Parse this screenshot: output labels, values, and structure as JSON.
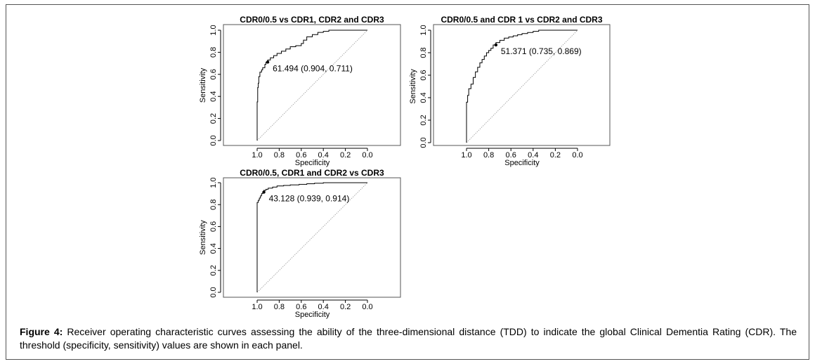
{
  "figure": {
    "caption_label": "Figure 4:",
    "caption_text": " Receiver operating characteristic curves assessing the ability of the three-dimensional distance (TDD) to indicate the global Clinical Dementia Rating (CDR). The threshold (specificity, sensitivity) values are shown in each panel."
  },
  "chart_data": [
    {
      "type": "line",
      "title": "CDR0/0.5 vs CDR1, CDR2 and CDR3",
      "xlabel": "Specificity",
      "ylabel": "Sensitivity",
      "xlim": [
        1.0,
        0.0
      ],
      "ylim": [
        0.0,
        1.0
      ],
      "x_reversed": true,
      "xticks": [
        "1.0",
        "0.8",
        "0.6",
        "0.4",
        "0.2",
        "0.0"
      ],
      "yticks": [
        "0.0",
        "0.2",
        "0.4",
        "0.6",
        "0.8",
        "1.0"
      ],
      "threshold": {
        "label": "61.494 (0.904, 0.711)",
        "specificity": 0.904,
        "sensitivity": 0.711
      },
      "series": [
        {
          "specificity": [
            1.0,
            1.0,
            0.995,
            0.99,
            0.985,
            0.975,
            0.96,
            0.95,
            0.93,
            0.92,
            0.904,
            0.88,
            0.85,
            0.82,
            0.78,
            0.74,
            0.7,
            0.65,
            0.6,
            0.58,
            0.55,
            0.5,
            0.45,
            0.4,
            0.35,
            0.3,
            0.2,
            0.1,
            0.0
          ],
          "sensitivity": [
            0.0,
            0.18,
            0.35,
            0.48,
            0.52,
            0.58,
            0.62,
            0.64,
            0.66,
            0.69,
            0.711,
            0.73,
            0.75,
            0.77,
            0.79,
            0.81,
            0.83,
            0.85,
            0.86,
            0.88,
            0.91,
            0.94,
            0.96,
            0.98,
            0.99,
            1.0,
            1.0,
            1.0,
            1.0
          ]
        }
      ]
    },
    {
      "type": "line",
      "title": "CDR0/0.5 and CDR 1 vs CDR2 and CDR3",
      "xlabel": "Specificity",
      "ylabel": "Sensitivity",
      "xlim": [
        1.0,
        0.0
      ],
      "ylim": [
        0.0,
        1.0
      ],
      "x_reversed": true,
      "xticks": [
        "1.0",
        "0.8",
        "0.6",
        "0.4",
        "0.2",
        "0.0"
      ],
      "yticks": [
        "0.0",
        "0.2",
        "0.4",
        "0.6",
        "0.8",
        "1.0"
      ],
      "threshold": {
        "label": "51.371 (0.735, 0.869)",
        "specificity": 0.735,
        "sensitivity": 0.869
      },
      "series": [
        {
          "specificity": [
            1.0,
            1.0,
            0.99,
            0.98,
            0.96,
            0.94,
            0.92,
            0.9,
            0.88,
            0.86,
            0.84,
            0.82,
            0.8,
            0.78,
            0.76,
            0.735,
            0.7,
            0.66,
            0.62,
            0.58,
            0.54,
            0.5,
            0.45,
            0.4,
            0.35,
            0.3,
            0.2,
            0.1,
            0.0
          ],
          "sensitivity": [
            0.0,
            0.31,
            0.36,
            0.42,
            0.48,
            0.52,
            0.58,
            0.63,
            0.67,
            0.71,
            0.74,
            0.77,
            0.8,
            0.82,
            0.84,
            0.869,
            0.89,
            0.91,
            0.93,
            0.94,
            0.95,
            0.96,
            0.97,
            0.98,
            0.99,
            1.0,
            1.0,
            1.0,
            1.0
          ]
        }
      ]
    },
    {
      "type": "line",
      "title": "CDR0/0.5, CDR1 and CDR2 vs CDR3",
      "xlabel": "Specificity",
      "ylabel": "Sensitivity",
      "xlim": [
        1.0,
        0.0
      ],
      "ylim": [
        0.0,
        1.0
      ],
      "x_reversed": true,
      "xticks": [
        "1.0",
        "0.8",
        "0.6",
        "0.4",
        "0.2",
        "0.0"
      ],
      "yticks": [
        "0.0",
        "0.2",
        "0.4",
        "0.6",
        "0.8",
        "1.0"
      ],
      "threshold": {
        "label": "43.128 (0.939, 0.914)",
        "specificity": 0.939,
        "sensitivity": 0.914
      },
      "series": [
        {
          "specificity": [
            1.0,
            1.0,
            0.99,
            0.98,
            0.97,
            0.96,
            0.95,
            0.939,
            0.92,
            0.9,
            0.86,
            0.82,
            0.76,
            0.7,
            0.62,
            0.55,
            0.48,
            0.4,
            0.3,
            0.2,
            0.1,
            0.0
          ],
          "sensitivity": [
            0.0,
            0.8,
            0.82,
            0.84,
            0.86,
            0.88,
            0.9,
            0.914,
            0.93,
            0.94,
            0.95,
            0.96,
            0.97,
            0.975,
            0.98,
            0.985,
            0.99,
            0.995,
            1.0,
            1.0,
            1.0,
            1.0
          ]
        }
      ]
    }
  ]
}
